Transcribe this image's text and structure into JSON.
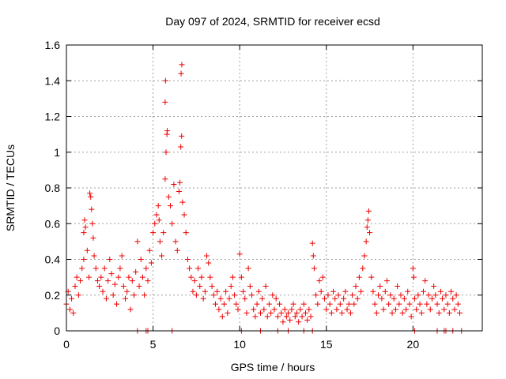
{
  "chart_data": {
    "type": "scatter",
    "title": "Day 097 of 2024, SRMTID for receiver ecsd",
    "xlabel": "GPS time / hours",
    "ylabel": "SRMTID / TECUs",
    "xlim": [
      0,
      24
    ],
    "ylim": [
      0,
      1.6
    ],
    "x_ticks": [
      0,
      5,
      10,
      15,
      20
    ],
    "y_ticks": [
      0,
      0.2,
      0.4,
      0.6,
      0.8,
      1,
      1.2,
      1.4,
      1.6
    ],
    "x_tick_labels": [
      "0",
      "5",
      "10",
      "15",
      "20"
    ],
    "y_tick_labels": [
      "0",
      "0.2",
      "0.4",
      "0.6",
      "0.8",
      "1",
      "1.2",
      "1.4",
      "1.6"
    ],
    "grid": true,
    "marker": "plus",
    "color": "#ee0000",
    "series": [
      {
        "name": "SRMTID",
        "points": [
          [
            0.0,
            0.15
          ],
          [
            0.1,
            0.22
          ],
          [
            0.2,
            0.12
          ],
          [
            0.3,
            0.18
          ],
          [
            0.4,
            0.1
          ],
          [
            0.5,
            0.25
          ],
          [
            0.6,
            0.3
          ],
          [
            0.7,
            0.2
          ],
          [
            0.8,
            0.28
          ],
          [
            0.9,
            0.35
          ],
          [
            1.0,
            0.4
          ],
          [
            1.0,
            0.55
          ],
          [
            1.05,
            0.62
          ],
          [
            1.1,
            0.58
          ],
          [
            1.2,
            0.45
          ],
          [
            1.3,
            0.3
          ],
          [
            1.35,
            0.77
          ],
          [
            1.4,
            0.75
          ],
          [
            1.45,
            0.68
          ],
          [
            1.5,
            0.6
          ],
          [
            1.55,
            0.52
          ],
          [
            1.6,
            0.42
          ],
          [
            1.7,
            0.35
          ],
          [
            1.8,
            0.28
          ],
          [
            1.9,
            0.25
          ],
          [
            2.0,
            0.3
          ],
          [
            2.1,
            0.22
          ],
          [
            2.2,
            0.35
          ],
          [
            2.3,
            0.18
          ],
          [
            2.4,
            0.28
          ],
          [
            2.5,
            0.4
          ],
          [
            2.6,
            0.32
          ],
          [
            2.7,
            0.2
          ],
          [
            2.8,
            0.26
          ],
          [
            2.9,
            0.15
          ],
          [
            3.0,
            0.3
          ],
          [
            3.1,
            0.35
          ],
          [
            3.2,
            0.42
          ],
          [
            3.3,
            0.25
          ],
          [
            3.4,
            0.18
          ],
          [
            3.5,
            0.22
          ],
          [
            3.6,
            0.3
          ],
          [
            3.7,
            0.12
          ],
          [
            3.8,
            0.28
          ],
          [
            3.9,
            0.2
          ],
          [
            4.0,
            0.33
          ],
          [
            4.1,
            0.5
          ],
          [
            4.2,
            0.25
          ],
          [
            4.3,
            0.4
          ],
          [
            4.4,
            0.3
          ],
          [
            4.5,
            0.2
          ],
          [
            4.6,
            0.35
          ],
          [
            4.7,
            0.28
          ],
          [
            4.8,
            0.45
          ],
          [
            4.9,
            0.38
          ],
          [
            5.0,
            0.55
          ],
          [
            5.1,
            0.6
          ],
          [
            5.2,
            0.65
          ],
          [
            5.3,
            0.7
          ],
          [
            5.35,
            0.62
          ],
          [
            5.4,
            0.5
          ],
          [
            5.5,
            0.42
          ],
          [
            5.6,
            0.55
          ],
          [
            5.7,
            0.85
          ],
          [
            5.75,
            1.0
          ],
          [
            5.8,
            1.1
          ],
          [
            5.82,
            1.12
          ],
          [
            5.7,
            1.28
          ],
          [
            5.72,
            1.4
          ],
          [
            5.9,
            0.75
          ],
          [
            6.0,
            0.7
          ],
          [
            6.1,
            0.6
          ],
          [
            6.2,
            0.82
          ],
          [
            6.3,
            0.5
          ],
          [
            6.4,
            0.45
          ],
          [
            6.5,
            0.78
          ],
          [
            6.55,
            0.83
          ],
          [
            6.6,
            1.03
          ],
          [
            6.65,
            1.09
          ],
          [
            6.62,
            1.44
          ],
          [
            6.66,
            1.49
          ],
          [
            6.7,
            0.72
          ],
          [
            6.8,
            0.65
          ],
          [
            6.9,
            0.55
          ],
          [
            7.0,
            0.4
          ],
          [
            7.1,
            0.35
          ],
          [
            7.2,
            0.3
          ],
          [
            7.3,
            0.22
          ],
          [
            7.4,
            0.28
          ],
          [
            7.5,
            0.2
          ],
          [
            7.6,
            0.35
          ],
          [
            7.7,
            0.25
          ],
          [
            7.8,
            0.3
          ],
          [
            7.9,
            0.18
          ],
          [
            8.0,
            0.22
          ],
          [
            8.1,
            0.42
          ],
          [
            8.2,
            0.38
          ],
          [
            8.3,
            0.3
          ],
          [
            8.4,
            0.25
          ],
          [
            8.5,
            0.2
          ],
          [
            8.6,
            0.15
          ],
          [
            8.7,
            0.22
          ],
          [
            8.8,
            0.12
          ],
          [
            8.9,
            0.18
          ],
          [
            9.0,
            0.08
          ],
          [
            9.1,
            0.15
          ],
          [
            9.2,
            0.22
          ],
          [
            9.3,
            0.1
          ],
          [
            9.4,
            0.18
          ],
          [
            9.5,
            0.25
          ],
          [
            9.6,
            0.3
          ],
          [
            9.7,
            0.2
          ],
          [
            9.8,
            0.15
          ],
          [
            9.9,
            0.12
          ],
          [
            10.0,
            0.43
          ],
          [
            10.1,
            0.3
          ],
          [
            10.2,
            0.22
          ],
          [
            10.3,
            0.18
          ],
          [
            10.4,
            0.1
          ],
          [
            10.5,
            0.35
          ],
          [
            10.6,
            0.25
          ],
          [
            10.7,
            0.2
          ],
          [
            10.8,
            0.12
          ],
          [
            10.9,
            0.08
          ],
          [
            11.0,
            0.15
          ],
          [
            11.1,
            0.22
          ],
          [
            11.2,
            0.1
          ],
          [
            11.3,
            0.18
          ],
          [
            11.4,
            0.12
          ],
          [
            11.5,
            0.25
          ],
          [
            11.6,
            0.08
          ],
          [
            11.7,
            0.15
          ],
          [
            11.8,
            0.1
          ],
          [
            11.9,
            0.2
          ],
          [
            12.0,
            0.12
          ],
          [
            12.1,
            0.18
          ],
          [
            12.2,
            0.08
          ],
          [
            12.3,
            0.15
          ],
          [
            12.4,
            0.1
          ],
          [
            12.5,
            0.05
          ],
          [
            12.6,
            0.12
          ],
          [
            12.7,
            0.08
          ],
          [
            12.8,
            0.1
          ],
          [
            12.9,
            0.06
          ],
          [
            13.0,
            0.12
          ],
          [
            13.1,
            0.15
          ],
          [
            13.2,
            0.08
          ],
          [
            13.3,
            0.1
          ],
          [
            13.4,
            0.05
          ],
          [
            13.5,
            0.12
          ],
          [
            13.6,
            0.08
          ],
          [
            13.7,
            0.15
          ],
          [
            13.8,
            0.1
          ],
          [
            13.9,
            0.06
          ],
          [
            14.0,
            0.12
          ],
          [
            14.1,
            0.08
          ],
          [
            14.2,
            0.49
          ],
          [
            14.25,
            0.42
          ],
          [
            14.3,
            0.35
          ],
          [
            14.4,
            0.2
          ],
          [
            14.5,
            0.15
          ],
          [
            14.6,
            0.28
          ],
          [
            14.7,
            0.22
          ],
          [
            14.8,
            0.3
          ],
          [
            14.9,
            0.18
          ],
          [
            15.0,
            0.12
          ],
          [
            15.1,
            0.2
          ],
          [
            15.2,
            0.15
          ],
          [
            15.3,
            0.1
          ],
          [
            15.4,
            0.22
          ],
          [
            15.5,
            0.18
          ],
          [
            15.6,
            0.12
          ],
          [
            15.7,
            0.2
          ],
          [
            15.8,
            0.15
          ],
          [
            15.9,
            0.1
          ],
          [
            16.0,
            0.18
          ],
          [
            16.1,
            0.22
          ],
          [
            16.2,
            0.12
          ],
          [
            16.3,
            0.15
          ],
          [
            16.4,
            0.1
          ],
          [
            16.5,
            0.2
          ],
          [
            16.6,
            0.15
          ],
          [
            16.7,
            0.25
          ],
          [
            16.8,
            0.18
          ],
          [
            16.9,
            0.3
          ],
          [
            17.0,
            0.22
          ],
          [
            17.1,
            0.35
          ],
          [
            17.2,
            0.42
          ],
          [
            17.3,
            0.5
          ],
          [
            17.35,
            0.58
          ],
          [
            17.4,
            0.62
          ],
          [
            17.45,
            0.67
          ],
          [
            17.5,
            0.55
          ],
          [
            17.6,
            0.3
          ],
          [
            17.7,
            0.22
          ],
          [
            17.8,
            0.15
          ],
          [
            17.9,
            0.1
          ],
          [
            18.0,
            0.2
          ],
          [
            18.1,
            0.25
          ],
          [
            18.2,
            0.18
          ],
          [
            18.3,
            0.12
          ],
          [
            18.4,
            0.22
          ],
          [
            18.5,
            0.28
          ],
          [
            18.6,
            0.15
          ],
          [
            18.7,
            0.2
          ],
          [
            18.8,
            0.1
          ],
          [
            18.9,
            0.18
          ],
          [
            19.0,
            0.12
          ],
          [
            19.1,
            0.25
          ],
          [
            19.2,
            0.15
          ],
          [
            19.3,
            0.2
          ],
          [
            19.4,
            0.1
          ],
          [
            19.5,
            0.18
          ],
          [
            19.6,
            0.12
          ],
          [
            19.7,
            0.22
          ],
          [
            19.8,
            0.15
          ],
          [
            19.9,
            0.08
          ],
          [
            20.0,
            0.35
          ],
          [
            20.05,
            0.3
          ],
          [
            20.1,
            0.18
          ],
          [
            20.2,
            0.12
          ],
          [
            20.3,
            0.2
          ],
          [
            20.4,
            0.15
          ],
          [
            20.5,
            0.1
          ],
          [
            20.6,
            0.22
          ],
          [
            20.7,
            0.28
          ],
          [
            20.8,
            0.15
          ],
          [
            20.9,
            0.2
          ],
          [
            21.0,
            0.12
          ],
          [
            21.1,
            0.18
          ],
          [
            21.2,
            0.25
          ],
          [
            21.3,
            0.2
          ],
          [
            21.4,
            0.15
          ],
          [
            21.5,
            0.1
          ],
          [
            21.6,
            0.22
          ],
          [
            21.7,
            0.18
          ],
          [
            21.8,
            0.12
          ],
          [
            21.9,
            0.2
          ],
          [
            22.0,
            0.15
          ],
          [
            22.1,
            0.1
          ],
          [
            22.2,
            0.22
          ],
          [
            22.3,
            0.18
          ],
          [
            22.4,
            0.12
          ],
          [
            22.5,
            0.2
          ],
          [
            22.6,
            0.15
          ],
          [
            22.7,
            0.1
          ],
          [
            4.1,
            0.0
          ],
          [
            4.6,
            0.0
          ],
          [
            4.7,
            0.0
          ],
          [
            6.1,
            0.0
          ],
          [
            10.1,
            0.0
          ],
          [
            11.2,
            0.0
          ],
          [
            12.2,
            0.0
          ],
          [
            12.8,
            0.0
          ],
          [
            13.7,
            0.0
          ],
          [
            14.2,
            0.0
          ],
          [
            20.1,
            0.0
          ],
          [
            21.4,
            0.0
          ],
          [
            21.8,
            0.0
          ],
          [
            21.9,
            0.0
          ],
          [
            22.3,
            0.0
          ],
          [
            22.8,
            0.0
          ]
        ]
      }
    ]
  }
}
